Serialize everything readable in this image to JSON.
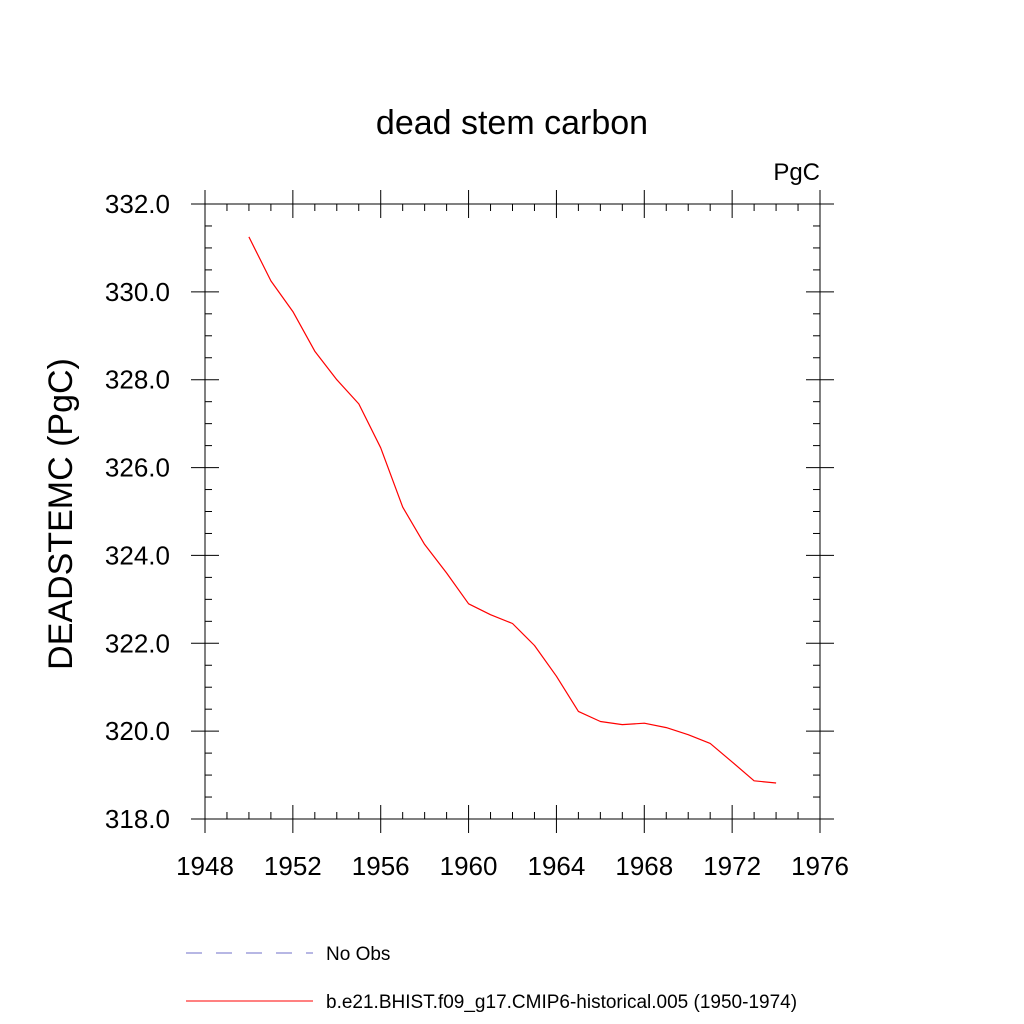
{
  "chart_data": {
    "type": "line",
    "title": "dead stem carbon",
    "units": "PgC",
    "xlabel": "",
    "ylabel": "DEADSTEMC  (PgC)",
    "xlim": [
      1948,
      1976
    ],
    "ylim": [
      318,
      332
    ],
    "x_ticks": [
      1948,
      1952,
      1956,
      1960,
      1964,
      1968,
      1972,
      1976
    ],
    "x_tick_labels": [
      "1948",
      "1952",
      "1956",
      "1960",
      "1964",
      "1968",
      "1972",
      "1976"
    ],
    "x_minor_step": 1,
    "y_ticks": [
      318,
      320,
      322,
      324,
      326,
      328,
      330,
      332
    ],
    "y_tick_labels": [
      "318.0",
      "320.0",
      "322.0",
      "324.0",
      "326.0",
      "328.0",
      "330.0",
      "332.0"
    ],
    "y_minor_step": 0.5,
    "grid": false,
    "legend_position": "bottom",
    "series": [
      {
        "name": "b.e21.BHIST.f09_g17.CMIP6-historical.005 (1950-1974)",
        "color": "#ff0000",
        "style": "solid",
        "x": [
          1950,
          1951,
          1952,
          1953,
          1954,
          1955,
          1956,
          1957,
          1958,
          1959,
          1960,
          1961,
          1962,
          1963,
          1964,
          1965,
          1966,
          1967,
          1968,
          1969,
          1970,
          1971,
          1972,
          1973,
          1974
        ],
        "y": [
          331.25,
          330.25,
          329.55,
          328.65,
          328.0,
          327.45,
          326.45,
          325.1,
          324.25,
          323.6,
          322.9,
          322.65,
          322.45,
          321.95,
          321.25,
          320.45,
          320.22,
          320.15,
          320.18,
          320.08,
          319.92,
          319.72,
          319.3,
          318.87,
          318.82
        ]
      }
    ],
    "legend": [
      {
        "label": "No Obs",
        "color": "#6f6fc8",
        "style": "dashed"
      },
      {
        "label": "b.e21.BHIST.f09_g17.CMIP6-historical.005 (1950-1974)",
        "color": "#ff0000",
        "style": "solid"
      }
    ]
  }
}
